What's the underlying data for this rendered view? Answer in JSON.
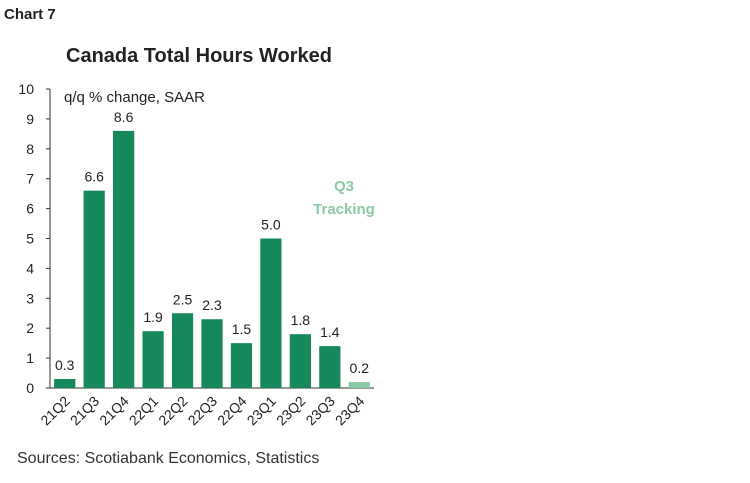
{
  "header": {
    "chart_number": "Chart 7"
  },
  "chart_data": {
    "type": "bar",
    "title": "Canada Total Hours Worked",
    "ylabel": "q/q % change, SAAR",
    "xlabel": "",
    "categories": [
      "21Q2",
      "21Q3",
      "21Q4",
      "22Q1",
      "22Q2",
      "22Q3",
      "22Q4",
      "23Q1",
      "23Q2",
      "23Q3",
      "23Q4"
    ],
    "values": [
      0.3,
      6.6,
      8.6,
      1.9,
      2.5,
      2.3,
      1.5,
      5.0,
      1.8,
      1.4,
      0.2
    ],
    "value_labels": [
      "0.3",
      "6.6",
      "8.6",
      "1.9",
      "2.5",
      "2.3",
      "1.5",
      "5.0",
      "1.8",
      "1.4",
      "0.2"
    ],
    "ylim": [
      0,
      10
    ],
    "yticks": [
      "0",
      "1",
      "2",
      "3",
      "4",
      "5",
      "6",
      "7",
      "8",
      "9",
      "10"
    ],
    "grid": false,
    "colors": {
      "bar": "#15885c",
      "bar_tracking": "#8cc9a6"
    },
    "tracking_index": 10,
    "annotation": {
      "line1": "Q3",
      "line2": "Tracking"
    }
  },
  "footer": {
    "source": "Sources: Scotiabank Economics, Statistics"
  }
}
